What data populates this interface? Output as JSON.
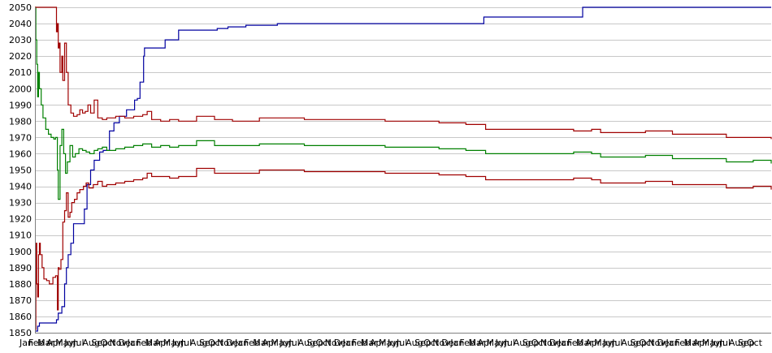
{
  "chart_data": {
    "type": "line",
    "title": "",
    "xlabel": "",
    "ylabel": "",
    "ylim": [
      1850,
      2050
    ],
    "yticks": [
      1850,
      1860,
      1870,
      1880,
      1890,
      1900,
      1910,
      1920,
      1930,
      1940,
      1950,
      1960,
      1970,
      1980,
      1990,
      2000,
      2010,
      2020,
      2030,
      2040,
      2050
    ],
    "grid": true,
    "legend": "none",
    "x_tick_labels": [
      "Jan",
      "Feb",
      "Mar",
      "Apr",
      "May",
      "Jun",
      "Jul",
      "Aug",
      "Sep",
      "Oct",
      "Nov",
      "Dec",
      "Jan",
      "Feb",
      "Mar",
      "Apr",
      "May",
      "Jun",
      "Jul",
      "Aug",
      "Sep",
      "Oct",
      "Nov",
      "Dec",
      "Jan",
      "Feb",
      "Mar",
      "Apr",
      "May",
      "Jun",
      "Jul",
      "Aug",
      "Sep",
      "Oct",
      "Nov",
      "Dec",
      "Jan",
      "Feb",
      "Mar",
      "Apr",
      "May",
      "Jun",
      "Jul",
      "Aug",
      "Sep",
      "Oct",
      "Nov",
      "Dec",
      "Jan",
      "Feb",
      "Mar",
      "Apr",
      "May",
      "Jun",
      "Jul",
      "Aug",
      "Sep",
      "Oct",
      "Nov",
      "Dec",
      "Jan",
      "Feb",
      "Mar",
      "Apr",
      "May",
      "Jun",
      "Jul",
      "Aug",
      "Sep",
      "Oct",
      "Nov",
      "Dec",
      "Jan",
      "Feb",
      "Mar",
      "Apr",
      "May",
      "Jun",
      "Jul",
      "Aug",
      "Sep",
      "Oct"
    ],
    "x_range": [
      0,
      82
    ],
    "series": [
      {
        "color": "#0000a0",
        "x": [
          0,
          0.3,
          0.5,
          2.3,
          2.4,
          2.6,
          2.8,
          3.0,
          3.3,
          3.5,
          3.7,
          4.0,
          4.3,
          5.3,
          5.5,
          5.8,
          6.2,
          6.6,
          7.0,
          7.2,
          7.6,
          8.3,
          8.8,
          9.4,
          9.8,
          10.2,
          10.6,
          11.1,
          11.4,
          11.7,
          12.1,
          12.2,
          14.1,
          14.5,
          15.5,
          16.0,
          20.0,
          20.3,
          21.0,
          21.5,
          23.0,
          23.5,
          27.0,
          49.7,
          50.0,
          60.4,
          61.0,
          82.0
        ],
        "values": [
          1851,
          1854,
          1856,
          1856,
          1858,
          1862,
          1862,
          1866,
          1880,
          1890,
          1898,
          1905,
          1917,
          1917,
          1926,
          1941,
          1950,
          1956,
          1956,
          1961,
          1962,
          1974,
          1979,
          1983,
          1983,
          1987,
          1987,
          1993,
          1994,
          2004,
          2020,
          2025,
          2025,
          2030,
          2030,
          2036,
          2036,
          2037,
          2037,
          2038,
          2038,
          2039,
          2040,
          2040,
          2044,
          2044,
          2050,
          2050
        ]
      },
      {
        "color": "#a00000",
        "x": [
          0,
          0.1,
          0.2,
          0.3,
          0.4,
          0.5,
          0.6,
          0.8,
          1.0,
          1.3,
          1.6,
          2.0,
          2.3,
          2.5,
          2.6,
          2.7,
          2.9,
          3.1,
          3.3,
          3.5,
          3.7,
          3.9,
          4.1,
          4.4,
          4.7,
          5.0,
          5.4,
          5.7,
          6.0,
          6.5,
          7.0,
          7.5,
          8.0,
          9.0,
          10.0,
          11.0,
          12.0,
          12.5,
          13.0,
          14.0,
          15.0,
          16.0,
          18.0,
          20.0,
          22.0,
          25.0,
          28.0,
          30.0,
          33.0,
          36.0,
          39.0,
          42.0,
          45.0,
          48.0,
          49.7,
          50.2,
          55.0,
          60.0,
          62.0,
          63.0,
          65.0,
          68.0,
          71.0,
          74.0,
          77.0,
          80.0,
          82.0
        ],
        "values": [
          1852,
          1905,
          1880,
          1872,
          1898,
          1905,
          1898,
          1890,
          1883,
          1882,
          1880,
          1884,
          1885,
          1864,
          1890,
          1889,
          1895,
          1918,
          1925,
          1936,
          1921,
          1924,
          1930,
          1932,
          1936,
          1938,
          1940,
          1942,
          1939,
          1941,
          1943,
          1940,
          1941,
          1942,
          1943,
          1944,
          1945,
          1948,
          1946,
          1946,
          1945,
          1946,
          1951,
          1948,
          1948,
          1950,
          1950,
          1949,
          1949,
          1949,
          1948,
          1948,
          1947,
          1946,
          1946,
          1944,
          1944,
          1945,
          1944,
          1942,
          1942,
          1943,
          1941,
          1941,
          1939,
          1940,
          1938
        ]
      },
      {
        "color": "#008000",
        "x": [
          0,
          0.1,
          0.2,
          0.3,
          0.4,
          0.5,
          0.7,
          0.9,
          1.2,
          1.5,
          1.8,
          2.1,
          2.3,
          2.5,
          2.6,
          2.8,
          3.0,
          3.2,
          3.4,
          3.6,
          3.9,
          4.2,
          4.5,
          4.9,
          5.3,
          5.7,
          6.1,
          6.6,
          7.0,
          7.5,
          8.0,
          8.5,
          9.0,
          10.0,
          11.0,
          12.0,
          13.0,
          14.0,
          15.0,
          16.0,
          18.0,
          20.0,
          22.0,
          25.0,
          28.0,
          30.0,
          33.0,
          36.0,
          39.0,
          42.0,
          45.0,
          48.0,
          49.7,
          50.2,
          55.0,
          60.0,
          62.0,
          63.0,
          65.0,
          68.0,
          71.0,
          74.0,
          77.0,
          80.0,
          82.0
        ],
        "values": [
          2050,
          2030,
          2015,
          1995,
          2010,
          2000,
          1990,
          1982,
          1975,
          1972,
          1970,
          1969,
          1970,
          1950,
          1932,
          1965,
          1975,
          1960,
          1948,
          1955,
          1965,
          1958,
          1960,
          1963,
          1962,
          1961,
          1960,
          1962,
          1963,
          1964,
          1962,
          1962,
          1963,
          1964,
          1965,
          1966,
          1964,
          1965,
          1964,
          1965,
          1968,
          1965,
          1965,
          1966,
          1966,
          1965,
          1965,
          1965,
          1964,
          1964,
          1963,
          1962,
          1962,
          1960,
          1960,
          1961,
          1960,
          1958,
          1958,
          1959,
          1957,
          1957,
          1955,
          1956,
          1954
        ]
      },
      {
        "color": "#a00000",
        "x": [
          0,
          2.3,
          2.4,
          2.5,
          2.6,
          2.7,
          2.8,
          3.0,
          3.1,
          3.3,
          3.5,
          3.7,
          4.0,
          4.3,
          4.7,
          5.0,
          5.3,
          5.6,
          5.9,
          6.2,
          6.6,
          7.0,
          7.5,
          8.0,
          9.0,
          10.0,
          11.0,
          12.0,
          12.5,
          13.0,
          14.0,
          15.0,
          16.0,
          18.0,
          20.0,
          22.0,
          25.0,
          28.0,
          30.0,
          33.0,
          36.0,
          39.0,
          42.0,
          45.0,
          48.0,
          49.7,
          50.2,
          55.0,
          60.0,
          62.0,
          63.0,
          65.0,
          68.0,
          71.0,
          74.0,
          77.0,
          80.0,
          82.0
        ],
        "values": [
          2050,
          2050,
          2035,
          2040,
          2025,
          2028,
          2010,
          2020,
          2005,
          2028,
          2010,
          1990,
          1985,
          1983,
          1984,
          1987,
          1985,
          1986,
          1990,
          1985,
          1993,
          1982,
          1981,
          1982,
          1983,
          1982,
          1983,
          1984,
          1986,
          1981,
          1980,
          1981,
          1980,
          1983,
          1981,
          1980,
          1982,
          1982,
          1981,
          1981,
          1981,
          1980,
          1980,
          1979,
          1978,
          1978,
          1975,
          1975,
          1974,
          1975,
          1973,
          1973,
          1974,
          1972,
          1972,
          1970,
          1970,
          1969
        ]
      }
    ]
  }
}
